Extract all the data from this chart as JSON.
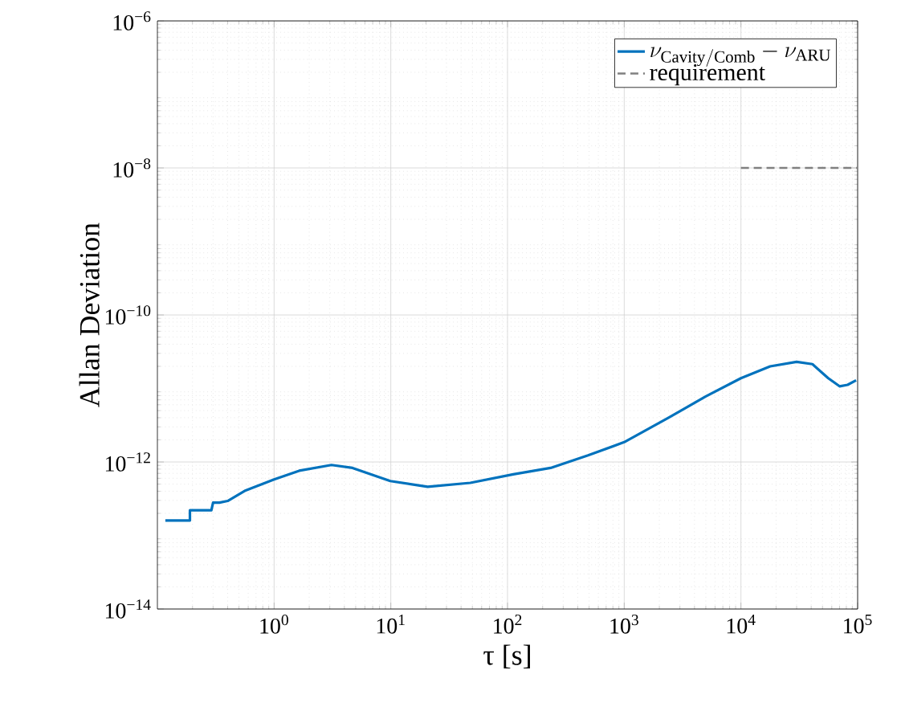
{
  "chart_data": {
    "type": "line",
    "xlabel": "τ [s]",
    "ylabel": "Allan Deviation",
    "log": "xy",
    "grid": true,
    "legend": "top right",
    "marker": "none",
    "xlim": [
      0.1,
      100000
    ],
    "ylim": [
      1e-14,
      1e-06
    ],
    "xticks": [
      {
        "value": 1,
        "label": "10$^{0}$"
      },
      {
        "value": 10,
        "label": "10$^{1}$"
      },
      {
        "value": 100,
        "label": "10$^{2}$"
      },
      {
        "value": 1000,
        "label": "10$^{3}$"
      },
      {
        "value": 10000,
        "label": "10$^{4}$"
      },
      {
        "value": 100000,
        "label": "10$^{5}$"
      }
    ],
    "yticks": [
      {
        "value": 1e-14,
        "label": "10$^{−14}$"
      },
      {
        "value": 1e-12,
        "label": "10$^{−12}$"
      },
      {
        "value": 1e-10,
        "label": "10$^{−10}$"
      },
      {
        "value": 1e-08,
        "label": "10$^{−8}$"
      },
      {
        "value": 1e-06,
        "label": "10$^{−6}$"
      }
    ],
    "series": [
      {
        "name": "\\nu_{\\mathrm{Cavity/Comb}} - \\nu_{\\mathrm{ARU}}",
        "color": "#0072bd",
        "line_style": "solid",
        "x": [
          0.117,
          0.19,
          0.19,
          0.29,
          0.3,
          0.34,
          0.4,
          0.57,
          1,
          1.64,
          3.1,
          4.7,
          9.9,
          20.7,
          48,
          112,
          234,
          490,
          1000,
          2400,
          5000,
          10000,
          17800,
          30000,
          41000,
          56000,
          70000,
          82000,
          97000
        ],
        "values": [
          1.6e-13,
          1.6e-13,
          2.2e-13,
          2.2e-13,
          2.8e-13,
          2.8e-13,
          2.95e-13,
          4.1e-13,
          5.8e-13,
          7.6e-13,
          9.1e-13,
          8.3e-13,
          5.5e-13,
          4.6e-13,
          5.2e-13,
          6.8e-13,
          8.3e-13,
          1.23e-12,
          1.86e-12,
          4e-12,
          7.8e-12,
          1.38e-11,
          2e-11,
          2.3e-11,
          2.14e-11,
          1.38e-11,
          1.07e-11,
          1.12e-11,
          1.29e-11
        ]
      },
      {
        "name": "requirement",
        "color": "#808080",
        "line_style": "dashed",
        "x": [
          10000,
          100000
        ],
        "values": [
          1e-08,
          1e-08
        ]
      }
    ]
  }
}
